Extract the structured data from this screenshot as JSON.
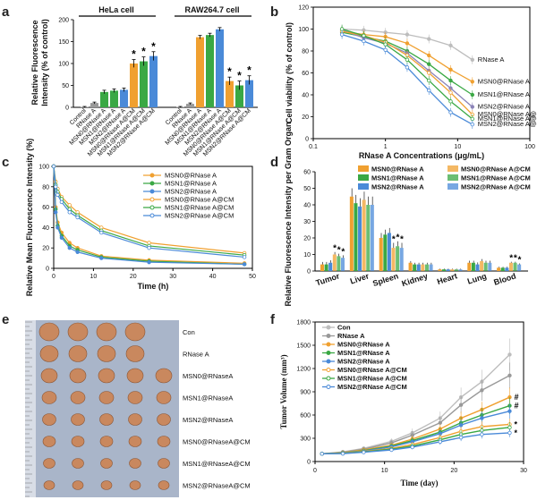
{
  "panel_letters": [
    "a",
    "b",
    "c",
    "d",
    "e",
    "f"
  ],
  "colors": {
    "gray": "#999999",
    "orange": "#f0a030",
    "green": "#3aa844",
    "blue": "#4a8ad8",
    "purple": "#8b83b8",
    "ltgray": "#bdbdbd"
  },
  "chart_data": [
    {
      "panel": "a",
      "type": "bar",
      "ylabel": "Relative Fluorescence Intensity (% of control)",
      "ylim": [
        0,
        200
      ],
      "yticks": [
        0,
        50,
        100,
        150,
        200
      ],
      "groups": [
        "HeLa cell",
        "RAW264.7 cell"
      ],
      "categories": [
        "Control",
        "RNase A",
        "MSN0@RNase A",
        "MSN1@RNase A",
        "MSN2@RNase A",
        "MSN0@RNase A@CM",
        "MSN1@RNase A@CM",
        "MSN2@RNase A@CM"
      ],
      "hela": [
        1,
        10,
        35,
        38,
        40,
        100,
        105,
        117
      ],
      "raw": [
        1,
        8,
        160,
        165,
        178,
        60,
        50,
        62
      ],
      "errors": [
        1,
        2,
        4,
        4,
        4,
        9,
        10,
        10
      ],
      "significance": "*"
    },
    {
      "panel": "b",
      "type": "line",
      "xlabel": "RNase A Concentrations (μg/mL)",
      "ylabel": "Cell viability (% of control)",
      "xscale": "log",
      "xlim": [
        0.1,
        100
      ],
      "ylim": [
        0,
        120
      ],
      "xticks": [
        "0.1",
        "1",
        "10",
        "100"
      ],
      "yticks": [
        0,
        20,
        40,
        60,
        80,
        100,
        120
      ],
      "x": [
        0.25,
        0.5,
        1,
        2,
        4,
        8,
        16
      ],
      "series": [
        {
          "name": "RNase A",
          "values": [
            100,
            99,
            97,
            95,
            91,
            85,
            72
          ]
        },
        {
          "name": "MSN0@RNase A",
          "values": [
            98,
            95,
            93,
            87,
            76,
            63,
            52
          ]
        },
        {
          "name": "MSN1@RNase A",
          "values": [
            97,
            93,
            89,
            80,
            68,
            53,
            40
          ]
        },
        {
          "name": "MSN2@RNase A",
          "values": [
            99,
            92,
            87,
            78,
            62,
            46,
            29
          ]
        },
        {
          "name": "MSN0@RNase A@CM",
          "values": [
            98,
            94,
            88,
            76,
            60,
            42,
            22
          ]
        },
        {
          "name": "MSN1@RNase A@CM",
          "values": [
            100,
            94,
            86,
            72,
            53,
            34,
            18
          ]
        },
        {
          "name": "MSN2@RNase A@CM",
          "values": [
            95,
            89,
            81,
            65,
            44,
            24,
            13
          ]
        }
      ]
    },
    {
      "panel": "c",
      "type": "line",
      "xlabel": "Time (h)",
      "ylabel": "Relative Mean Fluorescence Intensity (%)",
      "xlim": [
        0,
        50
      ],
      "ylim": [
        0,
        100
      ],
      "xticks": [
        0,
        10,
        20,
        30,
        40,
        50
      ],
      "yticks": [
        0,
        20,
        40,
        60,
        80,
        100
      ],
      "x": [
        0,
        0.5,
        1,
        2,
        4,
        6,
        12,
        24,
        48
      ],
      "series": [
        {
          "name": "MSN0@RNase A",
          "values": [
            100,
            60,
            45,
            35,
            25,
            20,
            12,
            8,
            5
          ]
        },
        {
          "name": "MSN1@RNase A",
          "values": [
            100,
            58,
            42,
            32,
            22,
            18,
            11,
            7,
            4
          ]
        },
        {
          "name": "MSN2@RNase A",
          "values": [
            100,
            55,
            40,
            30,
            20,
            16,
            10,
            6,
            4
          ]
        },
        {
          "name": "MSN0@RNase A@CM",
          "values": [
            100,
            85,
            78,
            70,
            62,
            55,
            40,
            25,
            15
          ]
        },
        {
          "name": "MSN1@RNase A@CM",
          "values": [
            100,
            82,
            75,
            68,
            58,
            52,
            37,
            22,
            13
          ]
        },
        {
          "name": "MSN2@RNase A@CM",
          "values": [
            100,
            80,
            72,
            65,
            55,
            50,
            35,
            20,
            11
          ]
        }
      ]
    },
    {
      "panel": "d",
      "type": "bar",
      "ylabel": "Relative Fluorescence Intensity per Gram Organ",
      "ylim": [
        0,
        60
      ],
      "yticks": [
        0,
        10,
        20,
        30,
        40,
        50,
        60
      ],
      "categories": [
        "Tumor",
        "Liver",
        "Spleen",
        "Kidney",
        "Heart",
        "Lung",
        "Blood"
      ],
      "series": [
        {
          "name": "MSN0@RNase A",
          "values": [
            4,
            45,
            20,
            5,
            1,
            5,
            2
          ]
        },
        {
          "name": "MSN1@RNase A",
          "values": [
            4,
            41,
            22,
            4,
            1,
            5,
            2
          ]
        },
        {
          "name": "MSN2@RNase A",
          "values": [
            5,
            39,
            23,
            4,
            1,
            4,
            2
          ]
        },
        {
          "name": "MSN0@RNase A@CM",
          "values": [
            10,
            43,
            14,
            4,
            1,
            6,
            5
          ]
        },
        {
          "name": "MSN1@RNase A@CM",
          "values": [
            9,
            40,
            15,
            4,
            1,
            5,
            5
          ]
        },
        {
          "name": "MSN2@RNase A@CM",
          "values": [
            8,
            40,
            14,
            4,
            1,
            5,
            4
          ]
        }
      ],
      "errors": [
        1.5,
        5,
        3,
        1,
        0.4,
        1.2,
        0.6
      ],
      "significance": "*"
    },
    {
      "panel": "f",
      "type": "line",
      "xlabel": "Time (day)",
      "ylabel": "Tumor Volume (mm³)",
      "xlim": [
        0,
        30
      ],
      "ylim": [
        0,
        1800
      ],
      "xticks": [
        0,
        10,
        20,
        30
      ],
      "yticks": [
        0,
        300,
        600,
        900,
        1200,
        1500,
        1800
      ],
      "x": [
        1,
        4,
        7,
        11,
        14,
        18,
        21,
        24,
        28
      ],
      "series": [
        {
          "name": "Con",
          "values": [
            100,
            125,
            170,
            260,
            370,
            560,
            830,
            1030,
            1380
          ]
        },
        {
          "name": "RNase A",
          "values": [
            100,
            120,
            160,
            240,
            340,
            500,
            730,
            920,
            1110
          ]
        },
        {
          "name": "MSN0@RNase A",
          "values": [
            100,
            115,
            150,
            210,
            290,
            420,
            560,
            670,
            830
          ]
        },
        {
          "name": "MSN1@RNase A",
          "values": [
            100,
            112,
            140,
            200,
            270,
            380,
            500,
            600,
            720
          ]
        },
        {
          "name": "MSN2@RNase A",
          "values": [
            100,
            110,
            135,
            190,
            255,
            360,
            470,
            560,
            650
          ]
        },
        {
          "name": "MSN0@RNase A@CM",
          "values": [
            100,
            108,
            130,
            170,
            220,
            310,
            390,
            450,
            480
          ]
        },
        {
          "name": "MSN1@RNase A@CM",
          "values": [
            100,
            105,
            125,
            160,
            200,
            280,
            350,
            400,
            440
          ]
        },
        {
          "name": "MSN2@RNase A@CM",
          "values": [
            100,
            102,
            120,
            150,
            185,
            255,
            310,
            350,
            370
          ]
        }
      ],
      "significance": [
        "*",
        "#"
      ]
    }
  ],
  "photo_labels": [
    "Con",
    "RNase A",
    "MSN0@RNaseA",
    "MSN1@RNaseA",
    "MSN2@RNaseA",
    "MSN0@RNaseA@CM",
    "MSN1@RNaseA@CM",
    "MSN2@RNaseA@CM"
  ],
  "photo_rows": [
    4,
    4,
    5,
    5,
    5,
    5,
    5,
    5
  ]
}
